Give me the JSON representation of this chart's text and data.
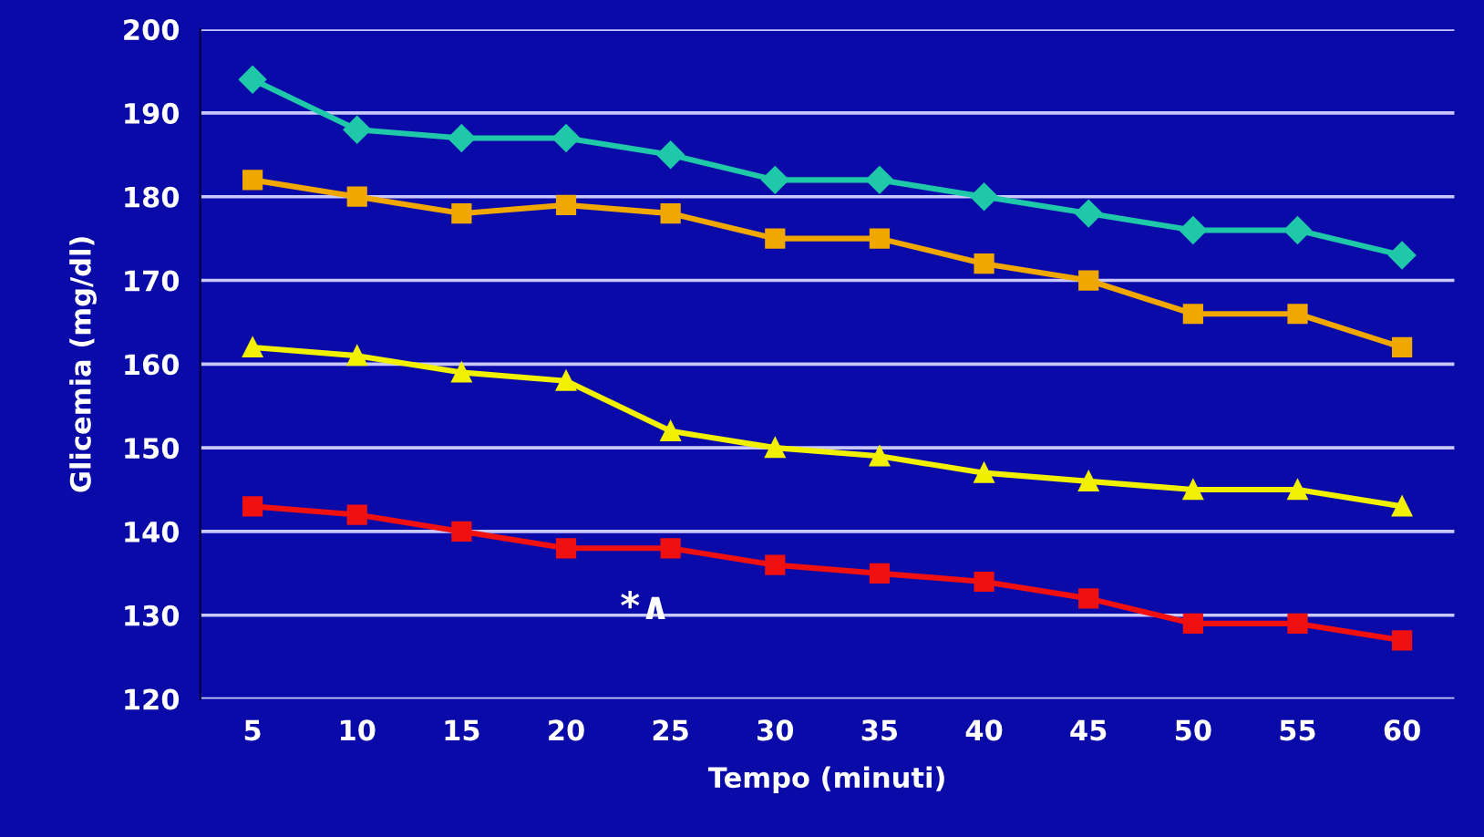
{
  "chart_data": {
    "type": "line",
    "xlabel": "Tempo (minuti)",
    "ylabel": "Glicemia (mg/dl)",
    "categories": [
      "5",
      "10",
      "15",
      "20",
      "25",
      "30",
      "35",
      "40",
      "45",
      "50",
      "55",
      "60"
    ],
    "series": [
      {
        "color": "#1fc8a8",
        "marker": "diamond",
        "values": [
          194,
          188,
          187,
          187,
          185,
          182,
          182,
          180,
          178,
          176,
          176,
          173
        ]
      },
      {
        "color": "#f0a800",
        "marker": "square",
        "values": [
          182,
          180,
          178,
          179,
          178,
          175,
          175,
          172,
          170,
          166,
          166,
          162
        ]
      },
      {
        "color": "#f0f000",
        "marker": "triangle",
        "values": [
          162,
          161,
          159,
          158,
          152,
          150,
          149,
          147,
          146,
          145,
          145,
          143
        ]
      },
      {
        "color": "#f01010",
        "marker": "square",
        "values": [
          143,
          142,
          140,
          138,
          138,
          136,
          135,
          134,
          132,
          129,
          129,
          127
        ]
      }
    ],
    "ylim": [
      120,
      200
    ],
    "yticks": [
      120,
      130,
      140,
      150,
      160,
      170,
      180,
      190,
      200
    ],
    "grid": "y",
    "line_style": "solid",
    "annotations": [
      "*∧"
    ]
  }
}
